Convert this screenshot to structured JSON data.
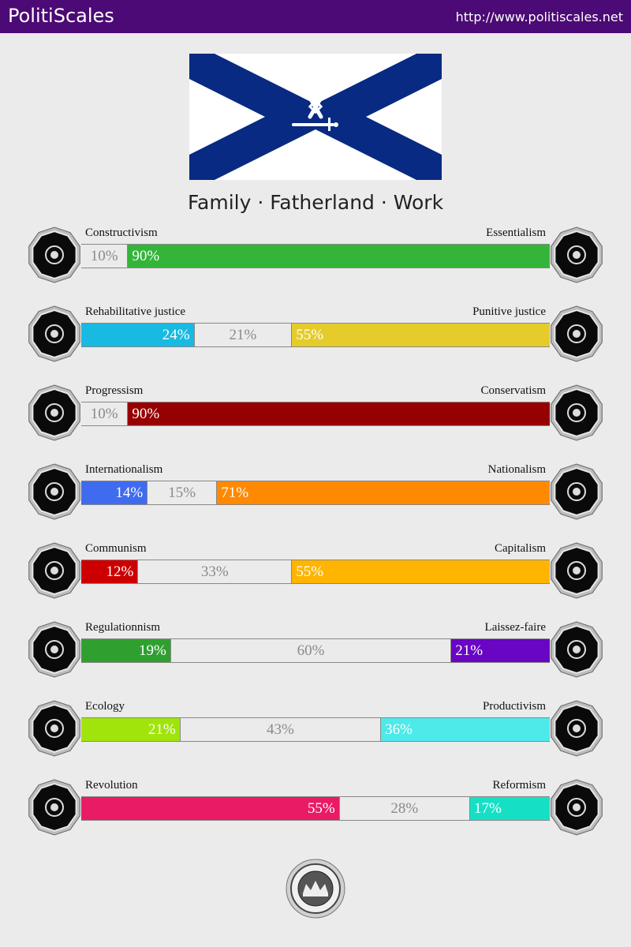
{
  "header": {
    "brand": "PolitiScales",
    "url": "http://www.politiscales.net",
    "background": "#4b0a75"
  },
  "flag": {
    "icon": "saltire-flag-with-othala-rune-and-sword",
    "colors": {
      "field": "#ffffff",
      "saltire": "#082a82"
    }
  },
  "motto": "Family · Fatherland · Work",
  "axes": [
    {
      "left_label": "Constructivism",
      "right_label": "Essentialism",
      "left_icon": "eye-icon",
      "right_icon": "flower-icon",
      "left": {
        "value": 0,
        "text": "",
        "color": "#3cb4e6"
      },
      "center": {
        "value": 10,
        "text": "10%"
      },
      "right": {
        "value": 90,
        "text": "90%",
        "color": "#34b53a"
      }
    },
    {
      "left_label": "Rehabilitative justice",
      "right_label": "Punitive justice",
      "left_icon": "handshake-icon",
      "right_icon": "prison-bars-icon",
      "left": {
        "value": 24,
        "text": "24%",
        "color": "#18bae1"
      },
      "center": {
        "value": 21,
        "text": "21%"
      },
      "right": {
        "value": 55,
        "text": "55%",
        "color": "#e5cc2a"
      }
    },
    {
      "left_label": "Progressism",
      "right_label": "Conservatism",
      "left_icon": "rocket-icon",
      "right_icon": "quill-icon",
      "left": {
        "value": 0,
        "text": "",
        "color": "#8e44ad"
      },
      "center": {
        "value": 10,
        "text": "10%"
      },
      "right": {
        "value": 90,
        "text": "90%",
        "color": "#970000"
      }
    },
    {
      "left_label": "Internationalism",
      "right_label": "Nationalism",
      "left_icon": "globe-laurel-icon",
      "right_icon": "flag-icon",
      "left": {
        "value": 14,
        "text": "14%",
        "color": "#3f6bef"
      },
      "center": {
        "value": 15,
        "text": "15%"
      },
      "right": {
        "value": 71,
        "text": "71%",
        "color": "#ff8900"
      }
    },
    {
      "left_label": "Communism",
      "right_label": "Capitalism",
      "left_icon": "hammer-sickle-icon",
      "right_icon": "money-bag-icon",
      "left": {
        "value": 12,
        "text": "12%",
        "color": "#cc0000"
      },
      "center": {
        "value": 33,
        "text": "33%"
      },
      "right": {
        "value": 55,
        "text": "55%",
        "color": "#ffb500"
      }
    },
    {
      "left_label": "Regulationnism",
      "right_label": "Laissez-faire",
      "left_icon": "ruler-compass-icon",
      "right_icon": "butterfly-icon",
      "left": {
        "value": 19,
        "text": "19%",
        "color": "#2fa02f"
      },
      "center": {
        "value": 60,
        "text": "60%"
      },
      "right": {
        "value": 21,
        "text": "21%",
        "color": "#6806c3"
      }
    },
    {
      "left_label": "Ecology",
      "right_label": "Productivism",
      "left_icon": "sprout-icon",
      "right_icon": "gear-icon",
      "left": {
        "value": 21,
        "text": "21%",
        "color": "#a0e40c"
      },
      "center": {
        "value": 43,
        "text": "43%"
      },
      "right": {
        "value": 36,
        "text": "36%",
        "color": "#4ee9e9"
      }
    },
    {
      "left_label": "Revolution",
      "right_label": "Reformism",
      "left_icon": "torch-fist-icon",
      "right_icon": "festive-boat-icon",
      "left": {
        "value": 55,
        "text": "55%",
        "color": "#e91b64"
      },
      "center": {
        "value": 28,
        "text": "28%"
      },
      "right": {
        "value": 17,
        "text": "17%",
        "color": "#15e0c6"
      }
    }
  ],
  "footer": {
    "seal_icon": "politiscales-seal-icon"
  }
}
